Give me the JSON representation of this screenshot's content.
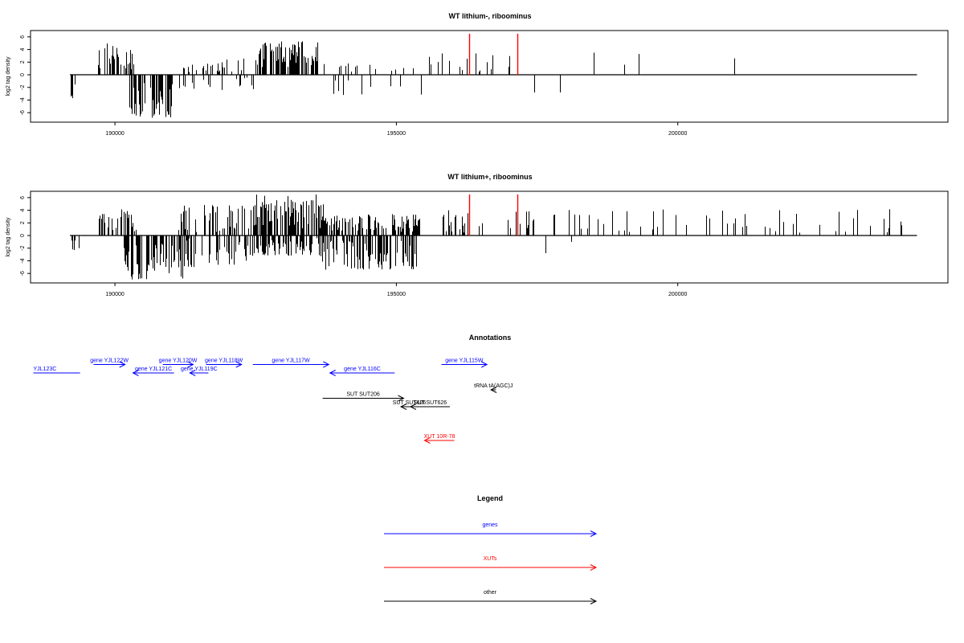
{
  "chart_data": [
    {
      "type": "bar",
      "title": "WT lithium-, riboominus",
      "ylabel": "log2 tag density",
      "xlim": [
        188500,
        204800
      ],
      "ylim": [
        -7.5,
        7
      ],
      "x_ticks": [
        190000,
        195000,
        200000
      ],
      "x_tick_labels": [
        "190000",
        "195000",
        "200000"
      ],
      "y_ticks": [
        -6,
        -4,
        -2,
        0,
        2,
        4,
        6
      ],
      "y_tick_labels": [
        "-6",
        "-4",
        "-2",
        "0",
        "2",
        "4",
        "6"
      ],
      "baseline": [
        189200,
        204250
      ],
      "highlight_color": "#ff0000",
      "highlights": [
        {
          "x": 196300,
          "y": 6.5
        },
        {
          "x": 197150,
          "y": 6.5
        }
      ],
      "segments": [
        {
          "x0": 189200,
          "x1": 189320,
          "n": 5,
          "min": -3.8,
          "max": -1.0,
          "seed": 11
        },
        {
          "x0": 189700,
          "x1": 190350,
          "n": 30,
          "min": 0.8,
          "max": 5.2,
          "seed": 12
        },
        {
          "x0": 190250,
          "x1": 191000,
          "n": 55,
          "min": -6.8,
          "max": -1.0,
          "seed": 13
        },
        {
          "x0": 191000,
          "x1": 192500,
          "n": 28,
          "min": 0.4,
          "max": 3.0,
          "seed": 14
        },
        {
          "x0": 191000,
          "x1": 192500,
          "n": 18,
          "min": -2.4,
          "max": -0.4,
          "seed": 15
        },
        {
          "x0": 192500,
          "x1": 193650,
          "n": 90,
          "min": 1.2,
          "max": 5.4,
          "seed": 16
        },
        {
          "x0": 193700,
          "x1": 195500,
          "n": 16,
          "min": 0.4,
          "max": 2.2,
          "seed": 17
        },
        {
          "x0": 193700,
          "x1": 195500,
          "n": 10,
          "min": -3.2,
          "max": -0.6,
          "seed": 18
        },
        {
          "x0": 195500,
          "x1": 197300,
          "n": 18,
          "min": 0.4,
          "max": 3.5,
          "seed": 19
        }
      ],
      "spikes": [
        {
          "x": 197450,
          "y": -2.8
        },
        {
          "x": 197900,
          "y": -2.8
        },
        {
          "x": 198500,
          "y": 3.5
        },
        {
          "x": 199050,
          "y": 1.6
        },
        {
          "x": 199300,
          "y": 3.3
        },
        {
          "x": 201000,
          "y": 2.6
        }
      ]
    },
    {
      "type": "bar",
      "title": "WT lithium+, riboominus",
      "ylabel": "log2 tag density",
      "xlim": [
        188500,
        204800
      ],
      "ylim": [
        -7.5,
        7
      ],
      "x_ticks": [
        190000,
        195000,
        200000
      ],
      "x_tick_labels": [
        "190000",
        "195000",
        "200000"
      ],
      "y_ticks": [
        -6,
        -4,
        -2,
        0,
        2,
        4,
        6
      ],
      "y_tick_labels": [
        "-6",
        "-4",
        "-2",
        "0",
        "2",
        "4",
        "6"
      ],
      "baseline": [
        189200,
        204250
      ],
      "highlight_color": "#ff0000",
      "highlights": [
        {
          "x": 196300,
          "y": 6.5
        },
        {
          "x": 197150,
          "y": 6.5
        }
      ],
      "segments": [
        {
          "x0": 189200,
          "x1": 189400,
          "n": 8,
          "min": -2.4,
          "max": -0.5,
          "seed": 21
        },
        {
          "x0": 189700,
          "x1": 190400,
          "n": 30,
          "min": 0.6,
          "max": 4.2,
          "seed": 22
        },
        {
          "x0": 190150,
          "x1": 191200,
          "n": 70,
          "min": -7.0,
          "max": -0.8,
          "seed": 23
        },
        {
          "x0": 191100,
          "x1": 192400,
          "n": 50,
          "min": 0.4,
          "max": 5.0,
          "seed": 24
        },
        {
          "x0": 191100,
          "x1": 192400,
          "n": 45,
          "min": -5.0,
          "max": -0.4,
          "seed": 25
        },
        {
          "x0": 192400,
          "x1": 193700,
          "n": 130,
          "min": 1.0,
          "max": 6.5,
          "seed": 26
        },
        {
          "x0": 192400,
          "x1": 193700,
          "n": 70,
          "min": -3.2,
          "max": -0.4,
          "seed": 27
        },
        {
          "x0": 193600,
          "x1": 195400,
          "n": 110,
          "min": 0.6,
          "max": 3.4,
          "seed": 28
        },
        {
          "x0": 193600,
          "x1": 195400,
          "n": 100,
          "min": -5.4,
          "max": -0.6,
          "seed": 29
        },
        {
          "x0": 195400,
          "x1": 197500,
          "n": 30,
          "min": 0.4,
          "max": 4.0,
          "seed": 30
        },
        {
          "x0": 197500,
          "x1": 204100,
          "n": 55,
          "min": 0.4,
          "max": 4.2,
          "seed": 31
        }
      ],
      "spikes": [
        {
          "x": 197650,
          "y": -2.8
        },
        {
          "x": 198100,
          "y": -1.0
        }
      ]
    }
  ],
  "annotations": {
    "title": "Annotations",
    "xlim": [
      188500,
      204800
    ],
    "features": [
      {
        "label": "YJL123C",
        "start": 188550,
        "end": 189380,
        "row": 0,
        "strand": "none",
        "color": "#0000ff"
      },
      {
        "label": "gene YJL122W",
        "start": 189620,
        "end": 190180,
        "row": -1,
        "strand": "+",
        "color": "#0000ff"
      },
      {
        "label": "gene YJL121C",
        "start": 190320,
        "end": 191050,
        "row": 0,
        "strand": "-",
        "color": "#0000ff"
      },
      {
        "label": "gene YJL120W",
        "start": 190850,
        "end": 191390,
        "row": -1,
        "strand": "+",
        "color": "#0000ff"
      },
      {
        "label": "gene YJL119C",
        "start": 191330,
        "end": 191660,
        "row": 0,
        "strand": "-",
        "color": "#0000ff"
      },
      {
        "label": "gene YJL118W",
        "start": 191620,
        "end": 192250,
        "row": -1,
        "strand": "+",
        "color": "#0000ff"
      },
      {
        "label": "gene YJL117W",
        "start": 192450,
        "end": 193800,
        "row": -1,
        "strand": "+",
        "color": "#0000ff"
      },
      {
        "label": "gene YJL116C",
        "start": 193820,
        "end": 194970,
        "row": 0,
        "strand": "-",
        "color": "#0000ff"
      },
      {
        "label": "gene YJL115W",
        "start": 195800,
        "end": 196610,
        "row": -1,
        "strand": "+",
        "color": "#0000ff"
      },
      {
        "label": "tRNA tA(AGC)J",
        "start": 196680,
        "end": 196770,
        "row": 2,
        "strand": "-",
        "color": "#000000"
      },
      {
        "label": "SUT SUT206",
        "start": 193690,
        "end": 195130,
        "row": 3,
        "strand": "+",
        "color": "#000000"
      },
      {
        "label": "SUT SUT626",
        "start": 195080,
        "end": 195380,
        "row": 4,
        "strand": "-",
        "color": "#000000"
      },
      {
        "label": "SUT SUT626",
        "start": 195250,
        "end": 195950,
        "row": 4,
        "strand": "-",
        "color": "#000000"
      },
      {
        "label": "XUT 10R-78",
        "start": 195500,
        "end": 196030,
        "row": 8,
        "strand": "-",
        "color": "#ff0000"
      }
    ]
  },
  "legend": {
    "title": "Legend",
    "items": [
      {
        "label": "genes",
        "color": "#0000ff"
      },
      {
        "label": "XUTs",
        "color": "#ff0000"
      },
      {
        "label": "other",
        "color": "#000000"
      }
    ]
  }
}
